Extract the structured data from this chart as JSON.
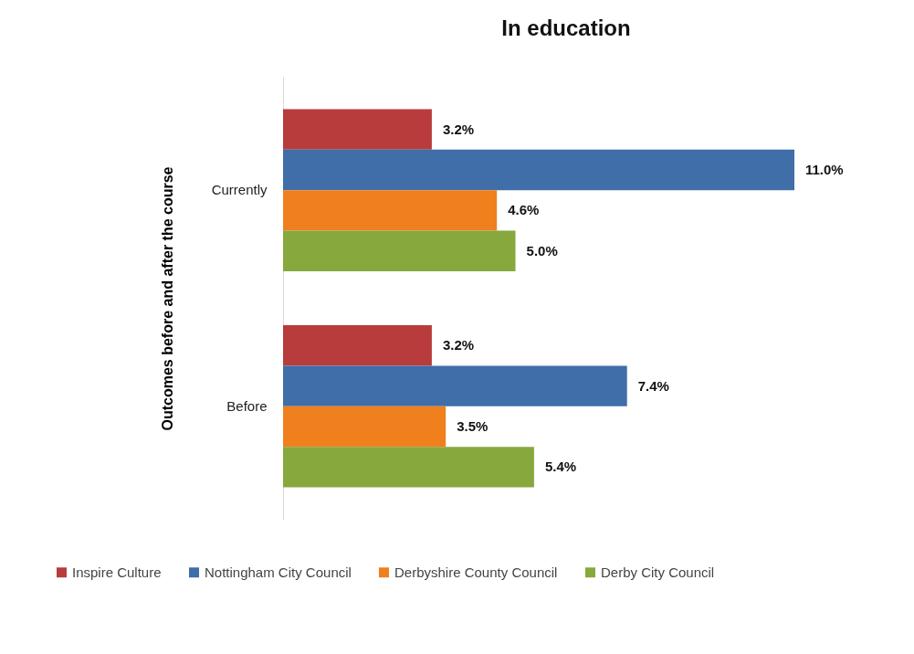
{
  "chart_data": {
    "type": "bar",
    "orientation": "horizontal",
    "title": "In education",
    "ylabel": "Outcomes before and after the course",
    "categories": [
      "Currently",
      "Before"
    ],
    "legend": "bottom",
    "grid": false,
    "series": [
      {
        "name": "Inspire Culture",
        "color": "#b83c3c",
        "values": [
          3.2,
          3.2
        ],
        "value_labels": [
          "3.2%",
          "3.2%"
        ]
      },
      {
        "name": "Nottingham City Council",
        "color": "#3f6ea8",
        "values": [
          11.0,
          7.4
        ],
        "value_labels": [
          "11.0%",
          "7.4%"
        ]
      },
      {
        "name": "Derbyshire County Council",
        "color": "#f07f1e",
        "values": [
          4.6,
          3.5
        ],
        "value_labels": [
          "4.6%",
          "3.5%"
        ]
      },
      {
        "name": "Derby City Council",
        "color": "#87a83c",
        "values": [
          5.0,
          5.4
        ],
        "value_labels": [
          "5.0%",
          "5.4%"
        ]
      }
    ]
  }
}
